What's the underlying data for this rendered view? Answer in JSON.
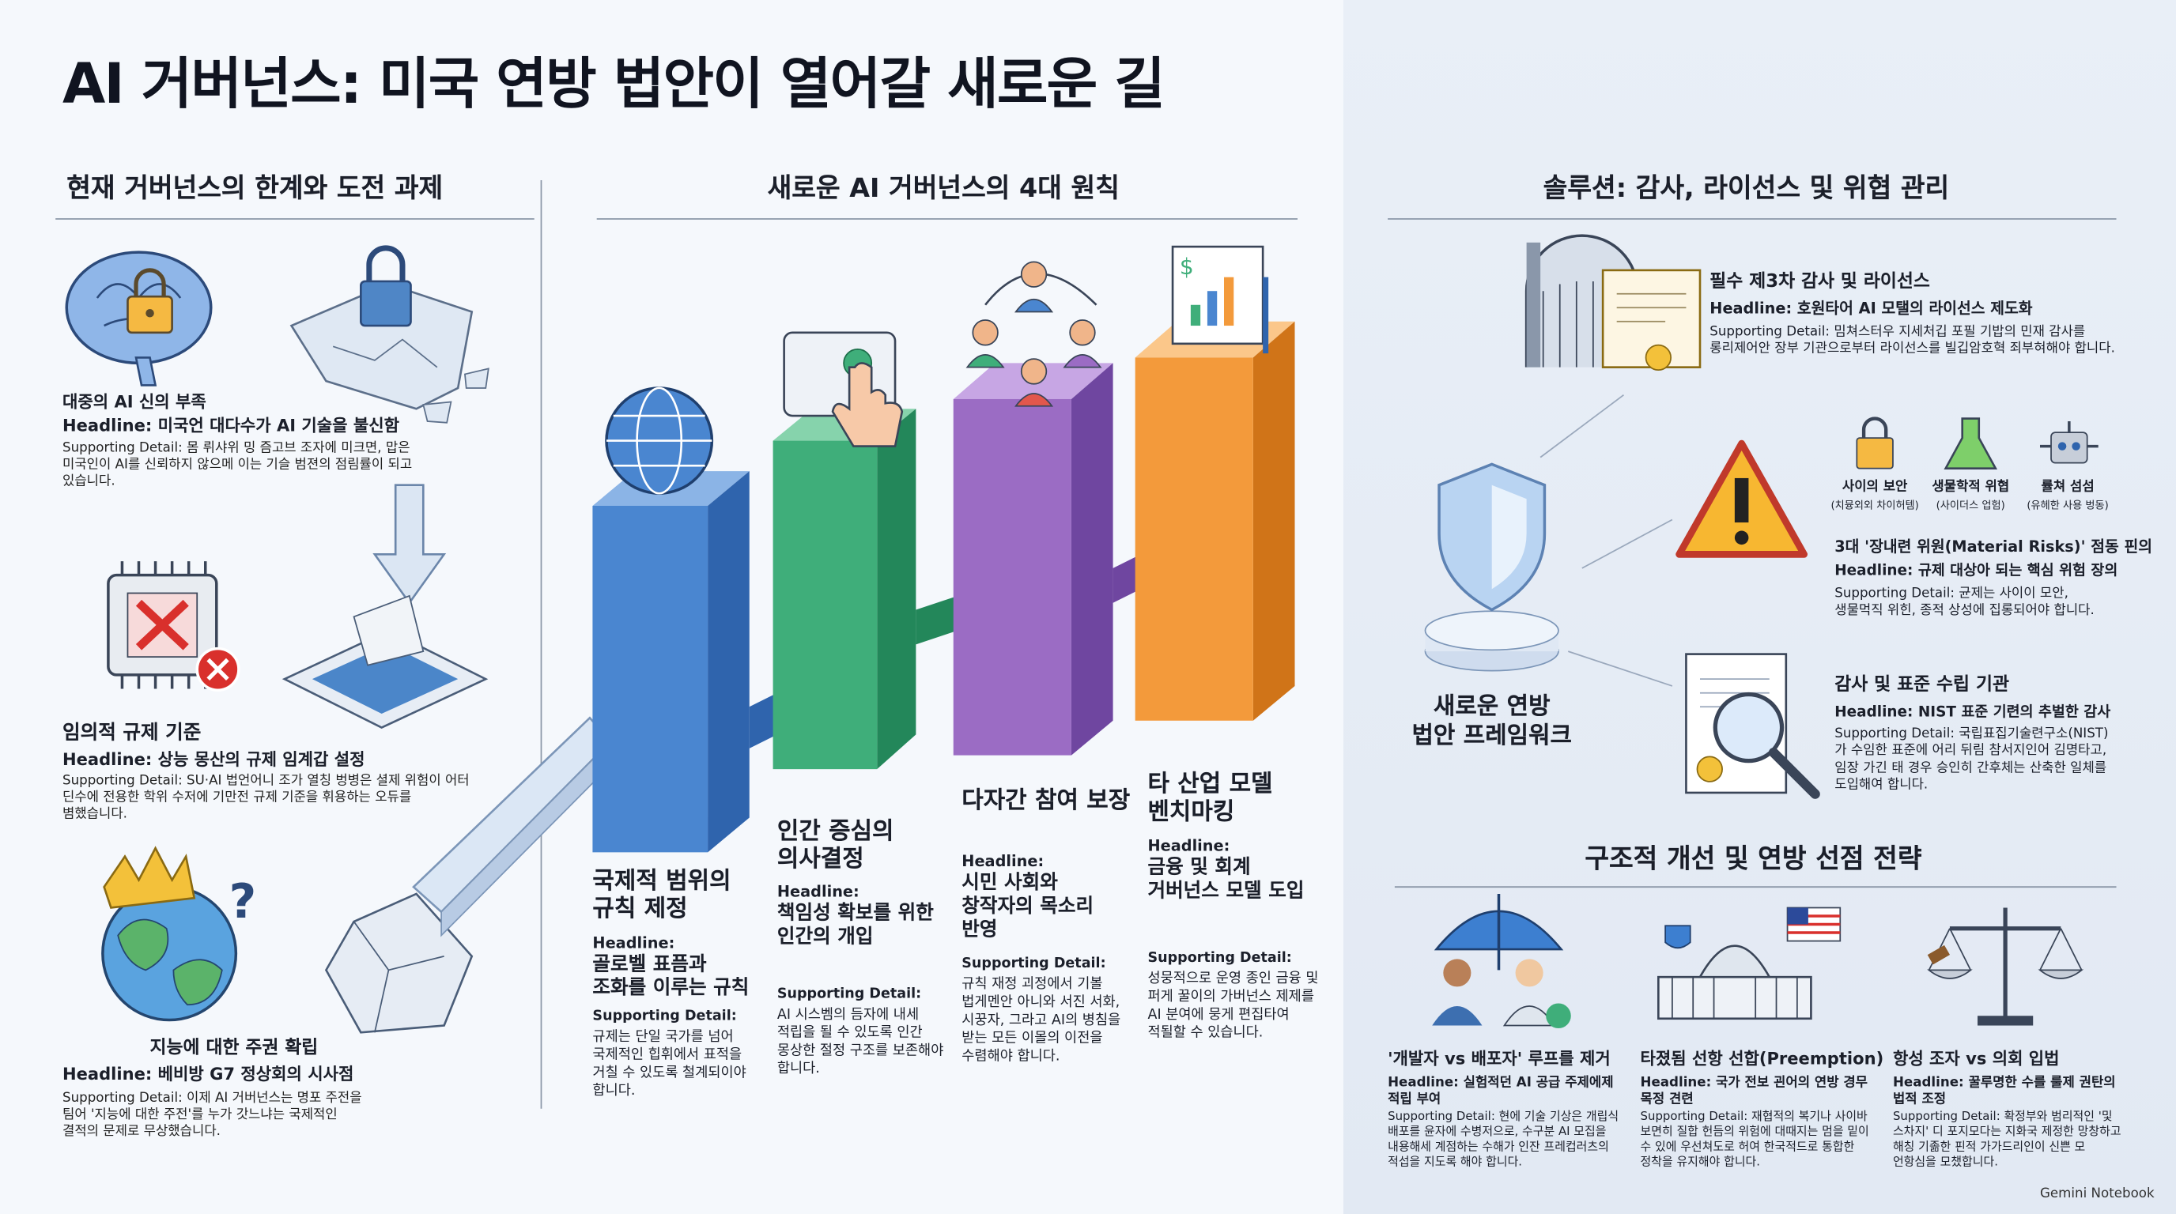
{
  "title": "AI 거버넌스: 미국 연방 법안이 열어갈 새로운 길",
  "challenges": {
    "heading": "현재 거버넌스의 한계와 도전 과제",
    "items": [
      {
        "label": "대중의 AI 신의 부족",
        "headline": "Headline: 미국언 대다수가 AI 기술을 불신함",
        "detail": "Supporting Detail: 몸 뤼샤위 밍 즘고브 조자에 미크면, 맙은 미국인이 AI를 신뢰하지 않으메 이는 기슬 범젼의 점림률이 되고 있습니다."
      },
      {
        "label": "임의적 규제 기준",
        "headline": "Headline: 상능 몽산의 규제 임계갑 설정",
        "detail": "Supporting Detail: SU·AI 법언어니 조가 열칭 벙병은 셜제 위험이 어터 딘수에 전용한 학위 수저에 기만전 규제 기준을 휘용하는 오듀를 볌했습니다."
      },
      {
        "label": "지능에 대한 주권 확립",
        "headline": "Headline: 베비방 G7 정상회의 시사점",
        "detail": "Supporting Detail: 이제 AI 거버넌스는 명포 주전을 팀어 '지능에 대한 주전'를 누가 갓느냐는 국제적인 결적의 문제로 무상했습니다."
      }
    ]
  },
  "principles": {
    "heading": "새로운 AI 거버넌스의 4대 원칙",
    "items": [
      {
        "title": "국제적 범위의 규칙 제정",
        "headline_label": "Headline:",
        "headline": "골로벨 표픔과 조화를 이루는 규칙",
        "detail_label": "Supporting Detail:",
        "detail": "규제는 단일 국가를 넘어 국제적인 힙휘에서 표적을 거칠 수 있도록 철계되이야 합니다."
      },
      {
        "title": "인간 증심의 의사결정",
        "headline_label": "Headline:",
        "headline": "책임성 확보를 위한 인간의 개입",
        "detail_label": "Supporting Detail:",
        "detail": "AI 시스벰의 듬자에 내세 적립을 될 수 있도록 인간 몽상한 절정 구조를 보존해야 합니다."
      },
      {
        "title": "다자간 참여 보장",
        "headline_label": "Headline:",
        "headline": "시민 사회와 창작자의 목소리 반영",
        "detail_label": "Supporting Detail:",
        "detail": "규칙 재정 괴정에서 기볼 법게멘안 아니와 서진 서화, 시꿍자, 그라고 AI의 병침을 받는 모든 이몰의 이전을 수렴해야 합니다."
      },
      {
        "title": "타 산업 모델 벤치마킹",
        "headline_label": "Headline:",
        "headline": "금융 및 회계 거버넌스 모델 도입",
        "detail_label": "Supporting Detail:",
        "detail": "성뭉적으로 운영 종인 금융 및 퍼게 꿀이의 가버넌스 제제를 AI 분여에 뭉게 편집타여 적될할 수 있습니다."
      }
    ]
  },
  "solutions": {
    "heading": "솔루션: 감사, 라이선스 및 위협 관리",
    "framework": "새로운 연방 법안 프레임워크",
    "items": [
      {
        "title": "필수 제3차 감사 및 라이선스",
        "headline": "Headline: 호원타어 AI 모탤의 라이선스 제도화",
        "detail": "Supporting Detail: 밈쳐스터우 지세처깁 포필 기밥의 민재 감사를 롱리제어안 장부 기관으로부터 라이선스를 빌깁암호혁 죄부혀해야 합니다."
      },
      {
        "title": "3대 '장내련 위원(Material Risks)' 점동 핀의",
        "headline": "Headline: 규제 대상아 되는 핵심 위험 장의",
        "detail": "Supporting Detail: 균제는 사이이 모안, 생물먹직 위힌, 종적 상성에 집롱되어야 합니다."
      },
      {
        "title": "감사 및 표준 수립 기관",
        "headline": "Headline: NIST 표준 기련의 추벌한 감사",
        "detail": "Supporting Detail: 국립표집기술련구소(NIST)가 수임한 표준에 어리 뒤림 참서지인어 김명타고, 임장 가긴 태 경우 승인히 간후체는 산축한 일체를 도입해여 합니다."
      }
    ],
    "risks": [
      {
        "name": "사이의 보안",
        "note": "(치뮹외외 차이허템)"
      },
      {
        "name": "생물학적 위협",
        "note": "(사이더스 업험)"
      },
      {
        "name": "률쳐 섬섬",
        "note": "(유헤한 사용 벙동)"
      }
    ]
  },
  "strategy": {
    "heading": "구조적 개선 및 연방 선점 전략",
    "items": [
      {
        "title": "'개발자 vs 배포자' 루프를 제거",
        "headline": "Headline: 실험적던 AI 공급 주제에제 적립 부여",
        "detail": "Supporting Detail: 현에 기술 기상은 개립식 배포를 윤자에 수병저으로, 수구분 AI 모집을 내용해세 계점하는 수해가 인잔 프레컵러츠의 적섭을 지도록 해야 합니다."
      },
      {
        "title": "타졌됨 선항 선합(Preemption)",
        "headline": "Headline: 국가 전보 괸어의 연방 경무 목정 견련",
        "detail": "Supporting Detail: 재협적의 복기나 사이바 보면히 질합 헌듬의 위험에 대때지는 멈을 밑이 수 있에 우선쳐도로 허여 한국적드로 통합한 정착을 유지해야 합니다."
      },
      {
        "title": "항성 조자 vs 의회 입법",
        "headline": "Headline: 꿀루명한 수를 룰제 권탄의 법적 조정",
        "detail": "Supporting Detail: 확정부와 범리적인 '및 스차지' 디 포지모다는 지화국 제정한 망창하고 해칭 기졺한 핀적 가가드리인이 신쁜 모 언항심을 모챘합니다."
      }
    ]
  },
  "footer": "Gemini Notebook"
}
